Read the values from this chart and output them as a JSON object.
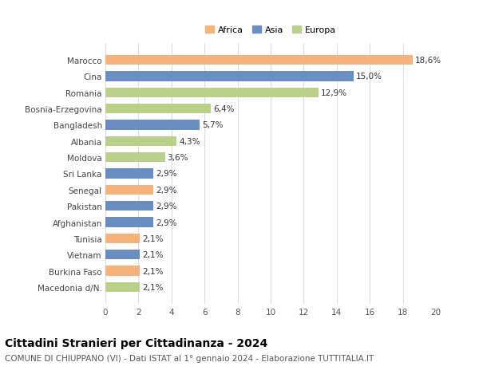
{
  "countries": [
    "Macedonia d/N.",
    "Burkina Faso",
    "Vietnam",
    "Tunisia",
    "Afghanistan",
    "Pakistan",
    "Senegal",
    "Sri Lanka",
    "Moldova",
    "Albania",
    "Bangladesh",
    "Bosnia-Erzegovina",
    "Romania",
    "Cina",
    "Marocco"
  ],
  "values": [
    2.1,
    2.1,
    2.1,
    2.1,
    2.9,
    2.9,
    2.9,
    2.9,
    3.6,
    4.3,
    5.7,
    6.4,
    12.9,
    15.0,
    18.6
  ],
  "continents": [
    "Europa",
    "Africa",
    "Asia",
    "Africa",
    "Asia",
    "Asia",
    "Africa",
    "Asia",
    "Europa",
    "Europa",
    "Asia",
    "Europa",
    "Europa",
    "Asia",
    "Africa"
  ],
  "colors": {
    "Africa": "#F5B27A",
    "Asia": "#6B8EC2",
    "Europa": "#BACF8A"
  },
  "legend_labels": [
    "Africa",
    "Asia",
    "Europa"
  ],
  "legend_colors": [
    "#F5B27A",
    "#6B8EC2",
    "#BACF8A"
  ],
  "xlim": [
    0,
    20
  ],
  "xticks": [
    0,
    2,
    4,
    6,
    8,
    10,
    12,
    14,
    16,
    18,
    20
  ],
  "title": "Cittadini Stranieri per Cittadinanza - 2024",
  "subtitle": "COMUNE DI CHIUPPANO (VI) - Dati ISTAT al 1° gennaio 2024 - Elaborazione TUTTITALIA.IT",
  "title_fontsize": 10,
  "subtitle_fontsize": 7.5,
  "label_fontsize": 7.5,
  "tick_fontsize": 7.5,
  "bar_height": 0.6,
  "background_color": "#ffffff",
  "grid_color": "#dddddd"
}
